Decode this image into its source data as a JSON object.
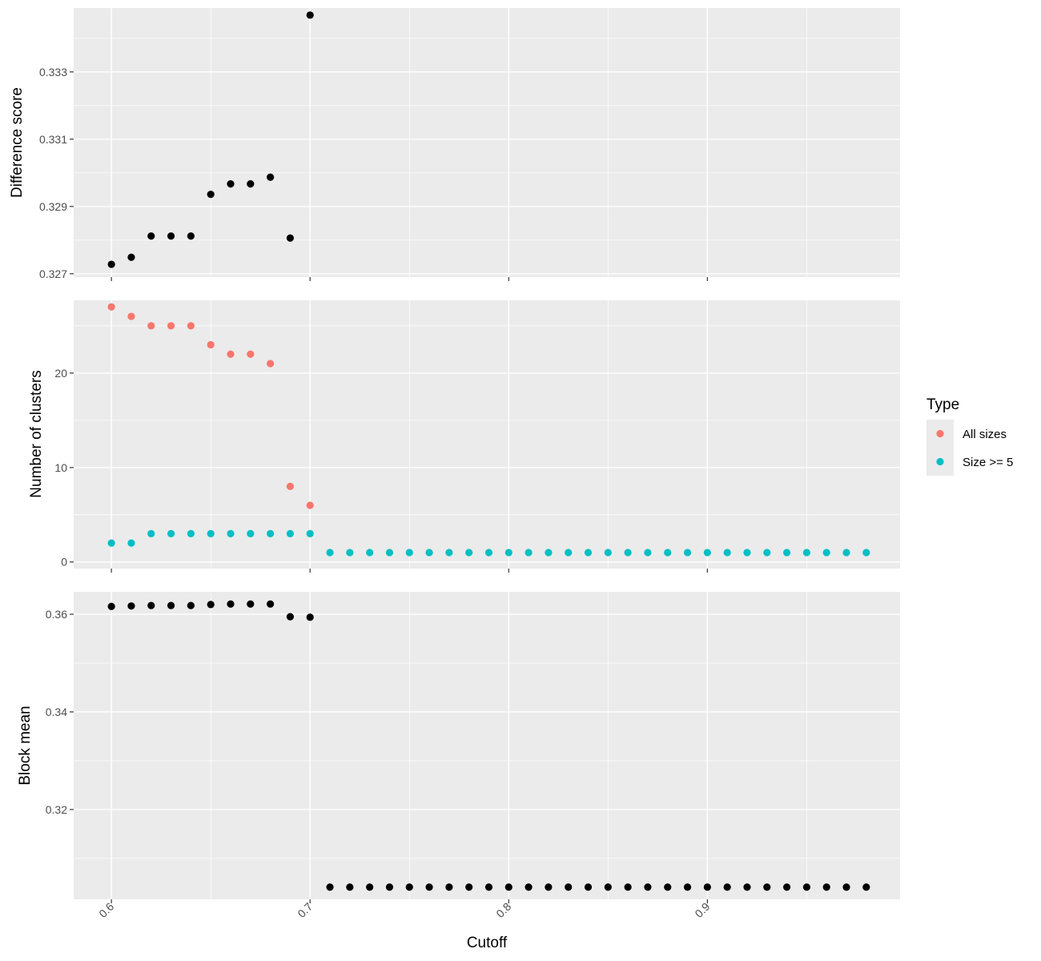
{
  "chart_data": {
    "type": "scatter",
    "x_axis": {
      "label": "Cutoff",
      "range": [
        0.581,
        0.997
      ],
      "ticks": [
        0.6,
        0.7,
        0.8,
        0.9
      ],
      "tick_labels": [
        "0.6",
        "0.7",
        "0.8",
        "0.9"
      ],
      "tick_label_rotation_deg": -45
    },
    "x": [
      0.6,
      0.61,
      0.62,
      0.63,
      0.64,
      0.65,
      0.66,
      0.67,
      0.68,
      0.69,
      0.7,
      0.71,
      0.72,
      0.73,
      0.74,
      0.75,
      0.76,
      0.77,
      0.78,
      0.79,
      0.8,
      0.81,
      0.82,
      0.83,
      0.84,
      0.85,
      0.86,
      0.87,
      0.88,
      0.89,
      0.9,
      0.91,
      0.92,
      0.93,
      0.94,
      0.95,
      0.96,
      0.97,
      0.98
    ],
    "panels": [
      {
        "id": "difference",
        "ylabel": "Difference score",
        "ylim": [
          0.3269,
          0.3349
        ],
        "y_ticks": [
          0.327,
          0.329,
          0.331,
          0.333
        ],
        "y_tick_labels": [
          "0.327",
          "0.329",
          "0.331",
          "0.333"
        ],
        "series": [
          {
            "color": "#000000",
            "x": [
              0.6,
              0.61,
              0.62,
              0.63,
              0.64,
              0.65,
              0.66,
              0.67,
              0.68,
              0.69,
              0.7
            ],
            "values": [
              0.32728,
              0.32749,
              0.32812,
              0.32812,
              0.32812,
              0.32936,
              0.32967,
              0.32967,
              0.32987,
              0.32806,
              0.33469
            ]
          }
        ]
      },
      {
        "id": "clusters",
        "ylabel": "Number of clusters",
        "ylim": [
          -0.7,
          27.7
        ],
        "y_ticks": [
          0,
          10,
          20
        ],
        "y_tick_labels": [
          "0",
          "10",
          "20"
        ],
        "series": [
          {
            "name": "All sizes",
            "color": "#F8766D",
            "x": [
              0.6,
              0.61,
              0.62,
              0.63,
              0.64,
              0.65,
              0.66,
              0.67,
              0.68,
              0.69,
              0.7
            ],
            "values": [
              27,
              26,
              25,
              25,
              25,
              23,
              22,
              22,
              21,
              8,
              6
            ]
          },
          {
            "name": "Size >= 5",
            "color": "#00BFC4",
            "x": [
              0.6,
              0.61,
              0.62,
              0.63,
              0.64,
              0.65,
              0.66,
              0.67,
              0.68,
              0.69,
              0.7,
              0.71,
              0.72,
              0.73,
              0.74,
              0.75,
              0.76,
              0.77,
              0.78,
              0.79,
              0.8,
              0.81,
              0.82,
              0.83,
              0.84,
              0.85,
              0.86,
              0.87,
              0.88,
              0.89,
              0.9,
              0.91,
              0.92,
              0.93,
              0.94,
              0.95,
              0.96,
              0.97,
              0.98
            ],
            "values": [
              2,
              2,
              3,
              3,
              3,
              3,
              3,
              3,
              3,
              3,
              3,
              1,
              1,
              1,
              1,
              1,
              1,
              1,
              1,
              1,
              1,
              1,
              1,
              1,
              1,
              1,
              1,
              1,
              1,
              1,
              1,
              1,
              1,
              1,
              1,
              1,
              1,
              1,
              1
            ]
          }
        ]
      },
      {
        "id": "blockmean",
        "ylabel": "Block mean",
        "ylim": [
          0.3016,
          0.3646
        ],
        "y_ticks": [
          0.32,
          0.34,
          0.36
        ],
        "y_tick_labels": [
          "0.32",
          "0.34",
          "0.36"
        ],
        "series": [
          {
            "color": "#000000",
            "x": [
              0.6,
              0.61,
              0.62,
              0.63,
              0.64,
              0.65,
              0.66,
              0.67,
              0.68,
              0.69,
              0.7,
              0.71,
              0.72,
              0.73,
              0.74,
              0.75,
              0.76,
              0.77,
              0.78,
              0.79,
              0.8,
              0.81,
              0.82,
              0.83,
              0.84,
              0.85,
              0.86,
              0.87,
              0.88,
              0.89,
              0.9,
              0.91,
              0.92,
              0.93,
              0.94,
              0.95,
              0.96,
              0.97,
              0.98
            ],
            "values": [
              0.3616,
              0.3617,
              0.3618,
              0.3618,
              0.3618,
              0.362,
              0.3621,
              0.3621,
              0.3621,
              0.3595,
              0.3594,
              0.3041,
              0.3041,
              0.3041,
              0.3041,
              0.3041,
              0.3041,
              0.3041,
              0.3041,
              0.3041,
              0.3041,
              0.3041,
              0.3041,
              0.3041,
              0.3041,
              0.3041,
              0.3041,
              0.3041,
              0.3041,
              0.3041,
              0.3041,
              0.3041,
              0.3041,
              0.3041,
              0.3041,
              0.3041,
              0.3041,
              0.3041,
              0.3041
            ]
          }
        ]
      }
    ],
    "legend": {
      "title": "Type",
      "placement": "right",
      "entries": [
        {
          "label": "All sizes",
          "color": "#F8766D"
        },
        {
          "label": "Size >= 5",
          "color": "#00BFC4"
        }
      ]
    },
    "grid": true
  }
}
